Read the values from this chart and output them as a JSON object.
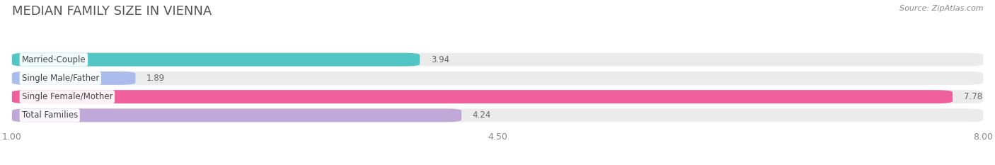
{
  "title": "MEDIAN FAMILY SIZE IN VIENNA",
  "source": "Source: ZipAtlas.com",
  "categories": [
    "Married-Couple",
    "Single Male/Father",
    "Single Female/Mother",
    "Total Families"
  ],
  "values": [
    3.94,
    1.89,
    7.78,
    4.24
  ],
  "bar_colors": [
    "#52C5C5",
    "#AABCEC",
    "#F0609A",
    "#C0A8D8"
  ],
  "xlim_min": 1.0,
  "xlim_max": 8.0,
  "xticks": [
    1.0,
    4.5,
    8.0
  ],
  "xticklabels": [
    "1.00",
    "4.50",
    "8.00"
  ],
  "bar_height": 0.72,
  "background_color": "#ffffff",
  "bar_bg_color": "#ebebeb",
  "title_color": "#555555",
  "source_color": "#888888",
  "value_color": "#666666",
  "label_color": "#444444",
  "grid_color": "#ffffff",
  "title_fontsize": 13,
  "label_fontsize": 8.5,
  "value_fontsize": 8.5,
  "tick_fontsize": 9
}
